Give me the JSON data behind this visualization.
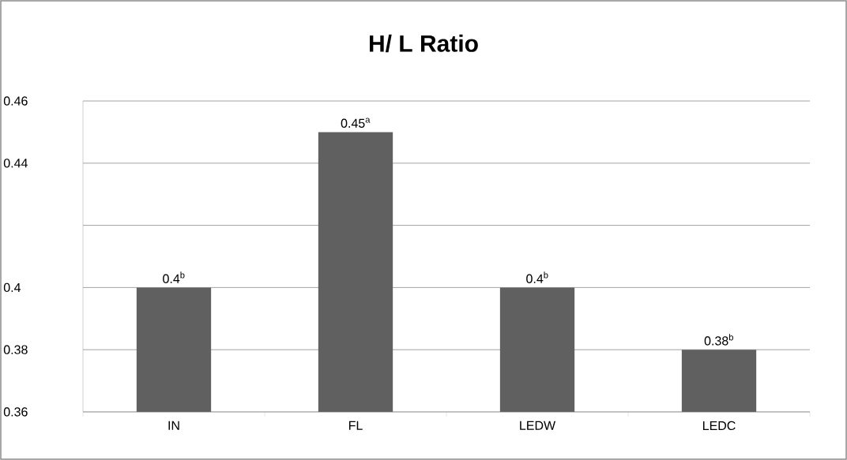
{
  "chart_data": {
    "type": "bar",
    "title": "H/ L Ratio",
    "categories": [
      "IN",
      "FL",
      "LEDW",
      "LEDC"
    ],
    "values": [
      0.4,
      0.45,
      0.4,
      0.38
    ],
    "value_labels": [
      "0.4$^{b}$",
      "0.45$^{a}$",
      "0.4$^{b}$",
      "0.38$^{b}$"
    ],
    "color": "#606060",
    "ylim": [
      0.36,
      0.46
    ],
    "yticks": [
      0.36,
      0.38,
      0.4,
      {
        "value": 0.42,
        "label": null
      },
      0.44,
      0.46
    ],
    "grid": "y"
  }
}
